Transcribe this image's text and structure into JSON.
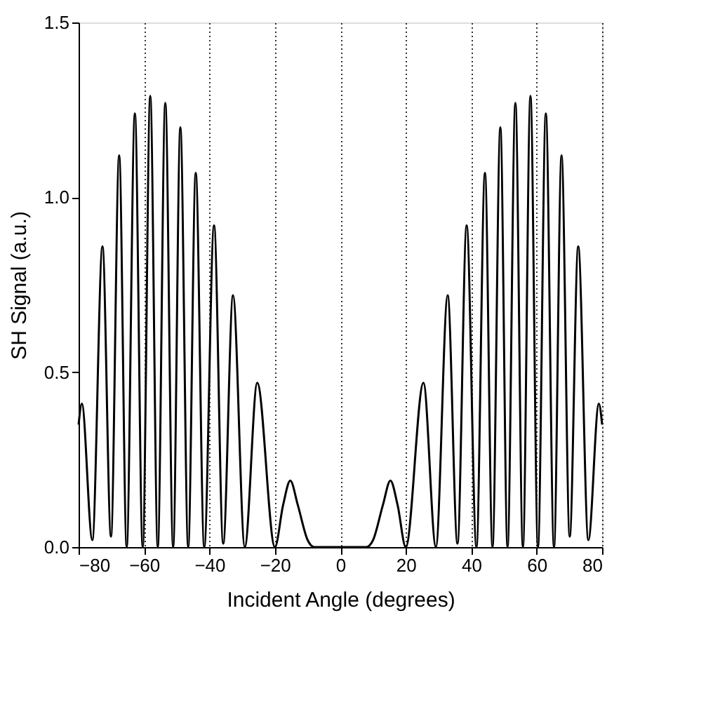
{
  "chart_data": {
    "type": "line",
    "xlabel": "Incident Angle (degrees)",
    "ylabel": "SH Signal (a.u.)",
    "x": [
      -80,
      -79.0,
      -75.8,
      -72.7,
      -70.1,
      -67.6,
      -65.3,
      -62.8,
      -60.4,
      -58.1,
      -55.8,
      -53.5,
      -51.1,
      -48.9,
      -46.5,
      -44.2,
      -41.6,
      -38.6,
      -35.8,
      -32.8,
      -29.2,
      -25.4,
      -20,
      -17.5,
      -15.3,
      -13,
      -10,
      -8,
      0,
      8,
      10,
      13,
      15.3,
      17.5,
      20,
      25.4,
      29.2,
      32.8,
      35.8,
      38.6,
      41.6,
      44.2,
      46.5,
      48.9,
      51.1,
      53.5,
      55.8,
      58.1,
      60.4,
      62.8,
      65.3,
      67.6,
      70.1,
      72.7,
      75.8,
      79.0,
      80
    ],
    "series": [
      {
        "color": "#000000",
        "values": [
          0.35,
          0.41,
          0.02,
          0.86,
          0.03,
          1.12,
          0,
          1.24,
          0,
          1.29,
          0,
          1.27,
          0,
          1.2,
          0,
          1.07,
          0,
          0.92,
          0.01,
          0.72,
          0,
          0.47,
          0,
          0.12,
          0.19,
          0.12,
          0.02,
          0,
          0,
          0,
          0.02,
          0.12,
          0.19,
          0.12,
          0,
          0.47,
          0,
          0.72,
          0.01,
          0.92,
          0,
          1.07,
          0,
          1.2,
          0,
          1.27,
          0,
          1.29,
          0,
          1.24,
          0,
          1.12,
          0.03,
          0.86,
          0.02,
          0.41,
          0.35
        ]
      }
    ],
    "xlim": [
      -80,
      80
    ],
    "xticks": [
      -80,
      -60,
      -40,
      -20,
      0,
      20,
      40,
      60,
      80
    ],
    "ylim": [
      0,
      1.5
    ],
    "yticks": [
      {
        "value": 0,
        "label": "0.0"
      },
      {
        "value": 0.5,
        "label": "0.5"
      },
      {
        "value": 1,
        "label": "1.0"
      },
      {
        "value": 1.5,
        "label": "1.5"
      }
    ],
    "grid": "x",
    "marker": "none",
    "line_style": "solid"
  }
}
